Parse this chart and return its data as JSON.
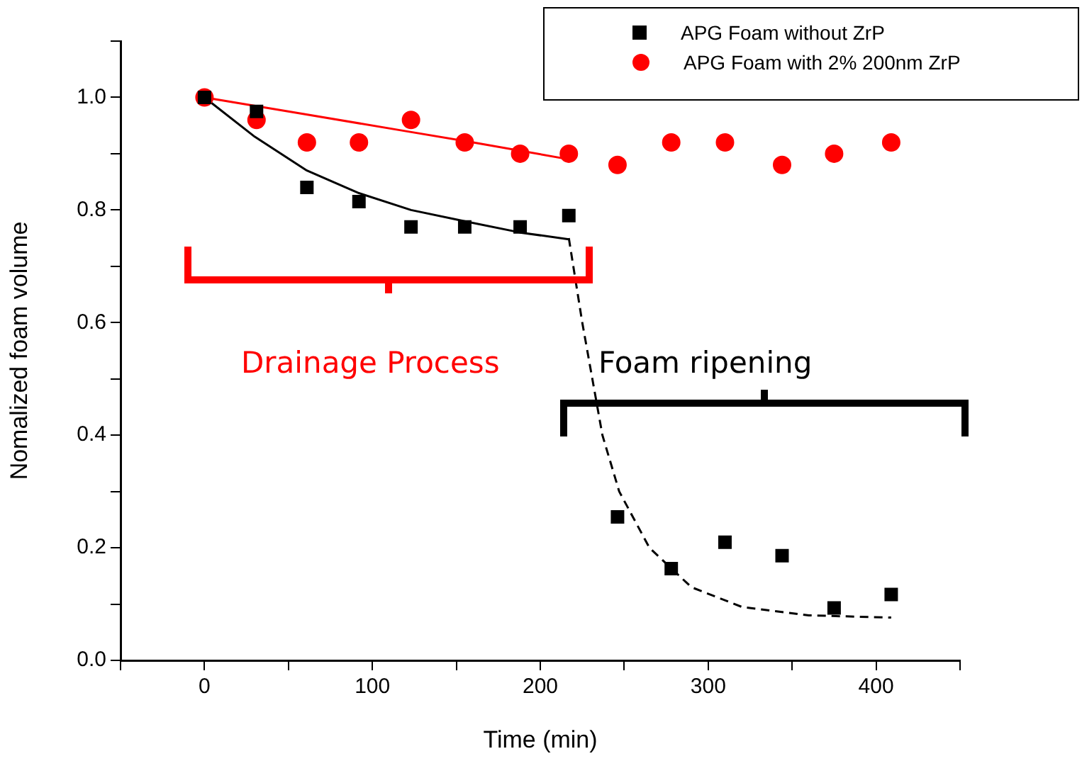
{
  "chart_data": {
    "type": "scatter",
    "xlabel": "Time (min)",
    "ylabel": "Nomalized foam volume",
    "xlim": [
      -50,
      450
    ],
    "ylim": [
      0,
      1.1
    ],
    "xticks": [
      {
        "value": -50,
        "label": null
      },
      0,
      {
        "value": 50,
        "label": null
      },
      100,
      {
        "value": 150,
        "label": null
      },
      200,
      {
        "value": 250,
        "label": null
      },
      300,
      {
        "value": 350,
        "label": null
      },
      400,
      {
        "value": 450,
        "label": null
      }
    ],
    "yticks": [
      {
        "value": 0,
        "label": "0.0"
      },
      {
        "value": 0.1,
        "label": null
      },
      0.2,
      {
        "value": 0.3,
        "label": null
      },
      0.4,
      {
        "value": 0.5,
        "label": null
      },
      0.6,
      {
        "value": 0.7,
        "label": null
      },
      0.8,
      {
        "value": 0.9,
        "label": null
      },
      {
        "value": 1.0,
        "label": "1.0"
      },
      {
        "value": 1.1,
        "label": null
      }
    ],
    "x": [
      0,
      31,
      61,
      92,
      123,
      155,
      188,
      217,
      246,
      278,
      310,
      344,
      375,
      409
    ],
    "series": [
      {
        "name": "APG Foam without ZrP",
        "color": "#000000",
        "marker": "square",
        "values": [
          1.0,
          0.975,
          0.84,
          0.815,
          0.77,
          0.77,
          0.77,
          0.79,
          0.255,
          0.163,
          0.21,
          0.186,
          0.093,
          0.117
        ]
      },
      {
        "name": "APG Foam with 2% 200nm ZrP",
        "color": "#ff0000",
        "marker": "circle",
        "values": [
          1.0,
          0.96,
          0.92,
          0.92,
          0.96,
          0.92,
          0.9,
          0.9,
          0.88,
          0.92,
          0.92,
          0.88,
          0.9,
          0.92
        ]
      },
      {
        "type": "line",
        "color": "#000000",
        "marker": "none",
        "line_style": "solid",
        "x": [
          0,
          30,
          61,
          92,
          123,
          155,
          188,
          217
        ],
        "values": [
          1.0,
          0.93,
          0.87,
          0.83,
          0.8,
          0.78,
          0.76,
          0.748
        ]
      },
      {
        "type": "line",
        "color": "#ff0000",
        "marker": "none",
        "line_style": "solid",
        "x": [
          0,
          60,
          120,
          160,
          217
        ],
        "values": [
          1.0,
          0.97,
          0.94,
          0.92,
          0.89
        ]
      },
      {
        "type": "line",
        "color": "#000000",
        "marker": "none",
        "line_style": "dashed",
        "x": [
          217,
          225,
          237,
          247,
          265,
          290,
          320,
          360,
          409
        ],
        "values": [
          0.75,
          0.6,
          0.4,
          0.3,
          0.2,
          0.13,
          0.095,
          0.08,
          0.076
        ]
      }
    ],
    "annotations": [
      "Drainage Process",
      "Foam ripening"
    ],
    "legend": "top right"
  }
}
